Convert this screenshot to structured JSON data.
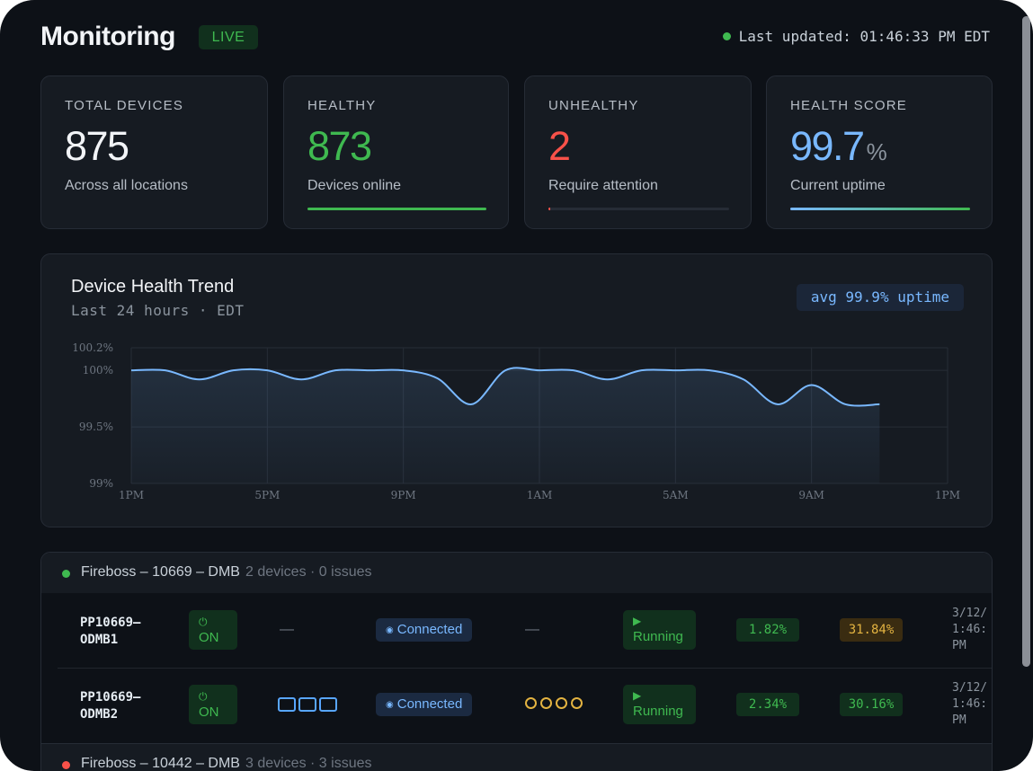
{
  "header": {
    "title": "Monitoring",
    "live_label": "LIVE",
    "last_updated": "Last updated: 01:46:33 PM EDT"
  },
  "stats": [
    {
      "label": "TOTAL DEVICES",
      "value": "875",
      "unit": "",
      "sub": "Across all locations",
      "color": "#f2f4f7",
      "progress": null
    },
    {
      "label": "HEALTHY",
      "value": "873",
      "unit": "",
      "sub": "Devices online",
      "color": "#3fb950",
      "progress": 1.0
    },
    {
      "label": "UNHEALTHY",
      "value": "2",
      "unit": "",
      "sub": "Require attention",
      "color": "#f85149",
      "progress": 0.01
    },
    {
      "label": "HEALTH SCORE",
      "value": "99.7",
      "unit": "%",
      "sub": "Current uptime",
      "color": "#79b8ff",
      "progress": 1.0
    }
  ],
  "trend": {
    "title": "Device Health Trend",
    "subtitle": "Last 24 hours · EDT",
    "avg_badge": "avg 99.9% uptime"
  },
  "chart_data": {
    "type": "area",
    "title": "Device Health Trend",
    "xlabel": "",
    "ylabel": "",
    "x_ticks": [
      "1PM",
      "5PM",
      "9PM",
      "1AM",
      "5AM",
      "9AM",
      "1PM"
    ],
    "y_ticks": [
      {
        "value": 100.2,
        "label": "100.2%"
      },
      {
        "value": 100,
        "label": "100%"
      },
      {
        "value": 99.5,
        "label": "99.5%"
      },
      {
        "value": 99,
        "label": "99%"
      }
    ],
    "ylim": [
      99,
      100.2
    ],
    "xlim": [
      0,
      24
    ],
    "color": "#79b8ff",
    "series": [
      {
        "name": "uptime",
        "points": [
          [
            0,
            100
          ],
          [
            1,
            100
          ],
          [
            2,
            99.92
          ],
          [
            3,
            100
          ],
          [
            4,
            100
          ],
          [
            5,
            99.92
          ],
          [
            6,
            100
          ],
          [
            7,
            100
          ],
          [
            8,
            100
          ],
          [
            9,
            99.93
          ],
          [
            10,
            99.7
          ],
          [
            11,
            100
          ],
          [
            12,
            100
          ],
          [
            13,
            100
          ],
          [
            14,
            99.92
          ],
          [
            15,
            100
          ],
          [
            16,
            100
          ],
          [
            17,
            100
          ],
          [
            18,
            99.92
          ],
          [
            19,
            99.7
          ],
          [
            20,
            99.87
          ],
          [
            21,
            99.7
          ],
          [
            22,
            99.7
          ]
        ]
      }
    ]
  },
  "groups": [
    {
      "name": "Fireboss – 10669 – DMB",
      "meta": "2 devices · 0 issues",
      "status_color": "#3fb950",
      "devices": [
        {
          "name_line1": "PP10669–",
          "name_line2": "ODMB1",
          "power_icon": "⏻",
          "power": "ON",
          "display": "—",
          "connection": "Connected",
          "conn_icon": "◉",
          "sensors": "—",
          "run_icon": "▶",
          "state": "Running",
          "cpu": "1.82%",
          "cpu_level": "green",
          "mem": "31.84%",
          "mem_level": "amber",
          "timestamp": "3/12/\n1:46:\nPM"
        },
        {
          "name_line1": "PP10669–",
          "name_line2": "ODMB2",
          "power_icon": "⏻",
          "power": "ON",
          "display": "",
          "connection": "Connected",
          "conn_icon": "◉",
          "sensors": "",
          "run_icon": "▶",
          "state": "Running",
          "cpu": "2.34%",
          "cpu_level": "green",
          "mem": "30.16%",
          "mem_level": "green",
          "timestamp": "3/12/\n1:46:\nPM"
        }
      ]
    },
    {
      "name": "Fireboss – 10442 – DMB",
      "meta": "3 devices · 3 issues",
      "status_color": "#f85149",
      "devices": []
    }
  ]
}
